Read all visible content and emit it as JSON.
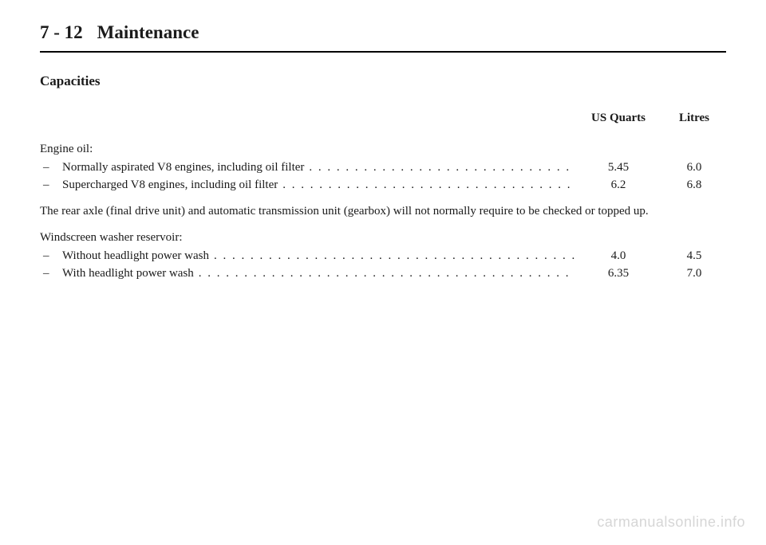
{
  "page": {
    "number": "7 - 12",
    "section": "Maintenance",
    "subsection": "Capacities",
    "columns": {
      "quarts": "US Quarts",
      "litres": "Litres"
    },
    "engine_oil": {
      "label": "Engine oil:",
      "rows": [
        {
          "label": "Normally aspirated V8 engines, including oil filter",
          "quarts": "5.45",
          "litres": "6.0"
        },
        {
          "label": "Supercharged V8 engines, including oil filter",
          "quarts": "6.2",
          "litres": "6.8"
        }
      ]
    },
    "note": "The rear axle (final drive unit) and automatic transmission unit (gearbox) will not normally require to be checked or topped up.",
    "washer": {
      "label": "Windscreen washer reservoir:",
      "rows": [
        {
          "label": "Without headlight power wash",
          "quarts": "4.0",
          "litres": "4.5"
        },
        {
          "label": "With headlight power wash",
          "quarts": "6.35",
          "litres": "7.0"
        }
      ]
    },
    "watermark": "carmanualsonline.info",
    "dots": ". . . . . . . . . . . . . . . . . . . . . . . . . . . . . . . . . . . . . . . . . . . . . . . . . . . . . . . . . . . . . . . . . . . . . . . . . . . . . . . . . . . . . . . . . ."
  }
}
